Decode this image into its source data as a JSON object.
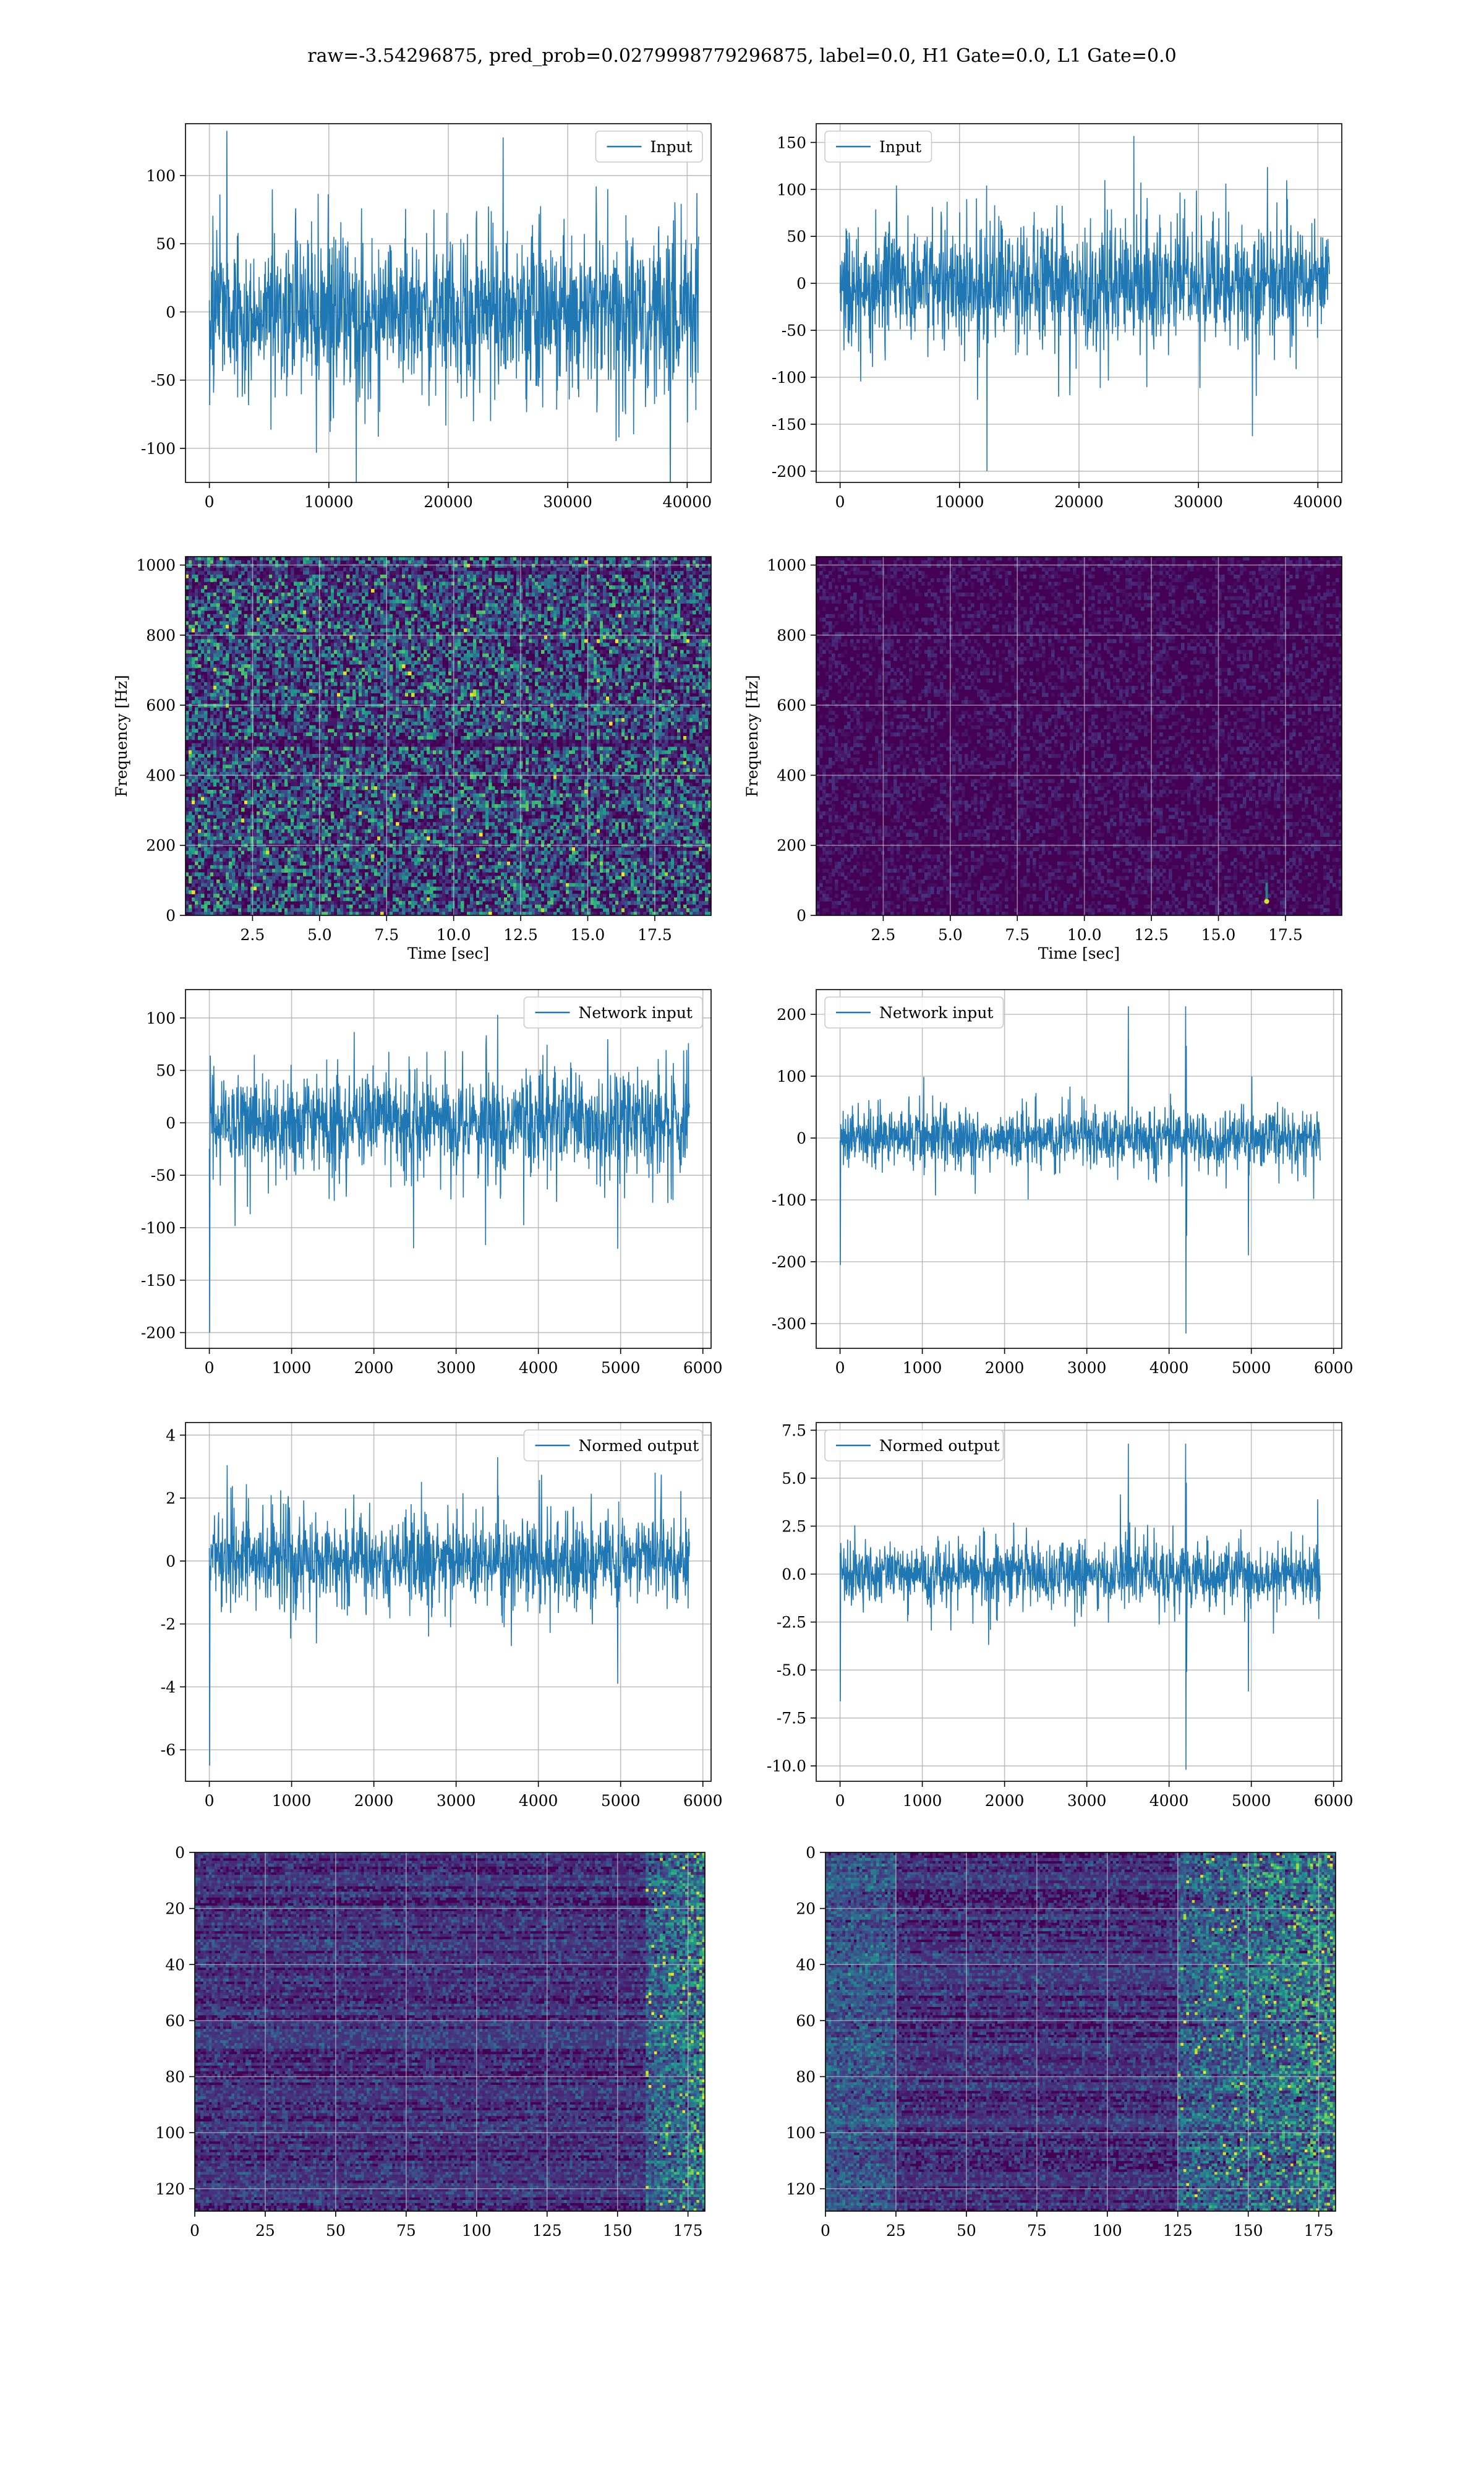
{
  "figure": {
    "title": "raw=-3.54296875, pred_prob=0.0279998779296875, label=0.0, H1 Gate=0.0, L1 Gate=0.0"
  },
  "colors": {
    "line": "#1f77b4",
    "viridis_dark": "#440154",
    "grid": "#b0b0b0"
  },
  "chart_data": [
    {
      "type": "line",
      "id": "input-h1",
      "legend": "Input",
      "legend_position": "top-right",
      "xlim": [
        -2000,
        42000
      ],
      "ylim": [
        -125,
        138
      ],
      "xticks": [
        0,
        10000,
        20000,
        30000,
        40000
      ],
      "yticks": [
        -100,
        -50,
        0,
        50,
        100
      ],
      "grid": true,
      "series": [
        {
          "name": "Input",
          "n_samples": 40960,
          "x_range": [
            0,
            40960
          ],
          "typical_min": -60,
          "typical_max": 60,
          "max": 128,
          "min": -125
        }
      ]
    },
    {
      "type": "line",
      "id": "input-l1",
      "legend": "Input",
      "legend_position": "top-left",
      "xlim": [
        -2000,
        42000
      ],
      "ylim": [
        -212,
        170
      ],
      "xticks": [
        0,
        10000,
        20000,
        30000,
        40000
      ],
      "yticks": [
        -200,
        -150,
        -100,
        -50,
        0,
        50,
        100,
        150
      ],
      "grid": true,
      "series": [
        {
          "name": "Input",
          "n_samples": 40960,
          "x_range": [
            0,
            40960
          ],
          "typical_min": -70,
          "typical_max": 70,
          "max": 157,
          "min": -200
        }
      ]
    },
    {
      "type": "heatmap",
      "id": "spectrogram-h1",
      "colormap": "viridis",
      "xlabel": "Time [sec]",
      "ylabel": "Frequency [Hz]",
      "xlim": [
        0,
        19.6
      ],
      "ylim": [
        0,
        1024
      ],
      "xticks": [
        2.5,
        5.0,
        7.5,
        10.0,
        12.5,
        15.0,
        17.5
      ],
      "yticks": [
        0,
        200,
        400,
        600,
        800,
        1000
      ],
      "grid": true,
      "intensity": "high"
    },
    {
      "type": "heatmap",
      "id": "spectrogram-l1",
      "colormap": "viridis",
      "xlabel": "Time [sec]",
      "ylabel": "Frequency [Hz]",
      "xlim": [
        0,
        19.6
      ],
      "ylim": [
        0,
        1024
      ],
      "xticks": [
        2.5,
        5.0,
        7.5,
        10.0,
        12.5,
        15.0,
        17.5
      ],
      "yticks": [
        0,
        200,
        400,
        600,
        800,
        1000
      ],
      "grid": true,
      "intensity": "low",
      "hotspot": {
        "time": 16.8,
        "freq": 40
      }
    },
    {
      "type": "line",
      "id": "network-input-h1",
      "legend": "Network input",
      "legend_position": "top-right",
      "xlim": [
        -290,
        6100
      ],
      "ylim": [
        -215,
        127
      ],
      "xticks": [
        0,
        1000,
        2000,
        3000,
        4000,
        5000,
        6000
      ],
      "yticks": [
        -200,
        -150,
        -100,
        -50,
        0,
        50,
        100
      ],
      "grid": true,
      "series": [
        {
          "name": "Network input",
          "n_samples": 5837,
          "x_range": [
            0,
            5837
          ],
          "typical_min": -50,
          "typical_max": 50,
          "max": 103,
          "min": -200
        }
      ]
    },
    {
      "type": "line",
      "id": "network-input-l1",
      "legend": "Network input",
      "legend_position": "top-left",
      "xlim": [
        -290,
        6100
      ],
      "ylim": [
        -340,
        240
      ],
      "xticks": [
        0,
        1000,
        2000,
        3000,
        4000,
        5000,
        6000
      ],
      "yticks": [
        -300,
        -200,
        -100,
        0,
        100,
        200
      ],
      "grid": true,
      "series": [
        {
          "name": "Network input",
          "n_samples": 5837,
          "x_range": [
            0,
            5837
          ],
          "typical_min": -50,
          "typical_max": 50,
          "max": 213,
          "min": -316,
          "spike_x": 4200
        }
      ]
    },
    {
      "type": "line",
      "id": "normed-output-h1",
      "legend": "Normed output",
      "legend_position": "top-right",
      "xlim": [
        -290,
        6100
      ],
      "ylim": [
        -7.0,
        4.4
      ],
      "xticks": [
        0,
        1000,
        2000,
        3000,
        4000,
        5000,
        6000
      ],
      "yticks": [
        -6,
        -4,
        -2,
        0,
        2,
        4
      ],
      "grid": true,
      "series": [
        {
          "name": "Normed output",
          "n_samples": 5837,
          "x_range": [
            0,
            5837
          ],
          "typical_min": -1.5,
          "typical_max": 1.5,
          "max": 3.3,
          "min": -6.5
        }
      ]
    },
    {
      "type": "line",
      "id": "normed-output-l1",
      "legend": "Normed output",
      "legend_position": "top-left",
      "xlim": [
        -290,
        6100
      ],
      "ylim": [
        -10.8,
        7.9
      ],
      "xticks": [
        0,
        1000,
        2000,
        3000,
        4000,
        5000,
        6000
      ],
      "yticks": [
        -10.0,
        -7.5,
        -5.0,
        -2.5,
        0.0,
        2.5,
        5.0,
        7.5
      ],
      "grid": true,
      "series": [
        {
          "name": "Normed output",
          "n_samples": 5837,
          "x_range": [
            0,
            5837
          ],
          "typical_min": -1.8,
          "typical_max": 1.8,
          "max": 6.8,
          "min": -10.2,
          "spike_x": 4200
        }
      ]
    },
    {
      "type": "heatmap",
      "id": "feature-map-h1",
      "colormap": "viridis",
      "xlim": [
        0,
        181
      ],
      "ylim": [
        0,
        128
      ],
      "y_inverted": true,
      "xticks": [
        0,
        25,
        50,
        75,
        100,
        125,
        150,
        175
      ],
      "yticks": [
        0,
        20,
        40,
        60,
        80,
        100,
        120
      ],
      "grid": true,
      "hot_columns_from": 160
    },
    {
      "type": "heatmap",
      "id": "feature-map-l1",
      "colormap": "viridis",
      "xlim": [
        0,
        181
      ],
      "ylim": [
        0,
        128
      ],
      "y_inverted": true,
      "xticks": [
        0,
        25,
        50,
        75,
        100,
        125,
        150,
        175
      ],
      "yticks": [
        0,
        20,
        40,
        60,
        80,
        100,
        120
      ],
      "grid": true,
      "hot_columns_from": 125
    }
  ]
}
